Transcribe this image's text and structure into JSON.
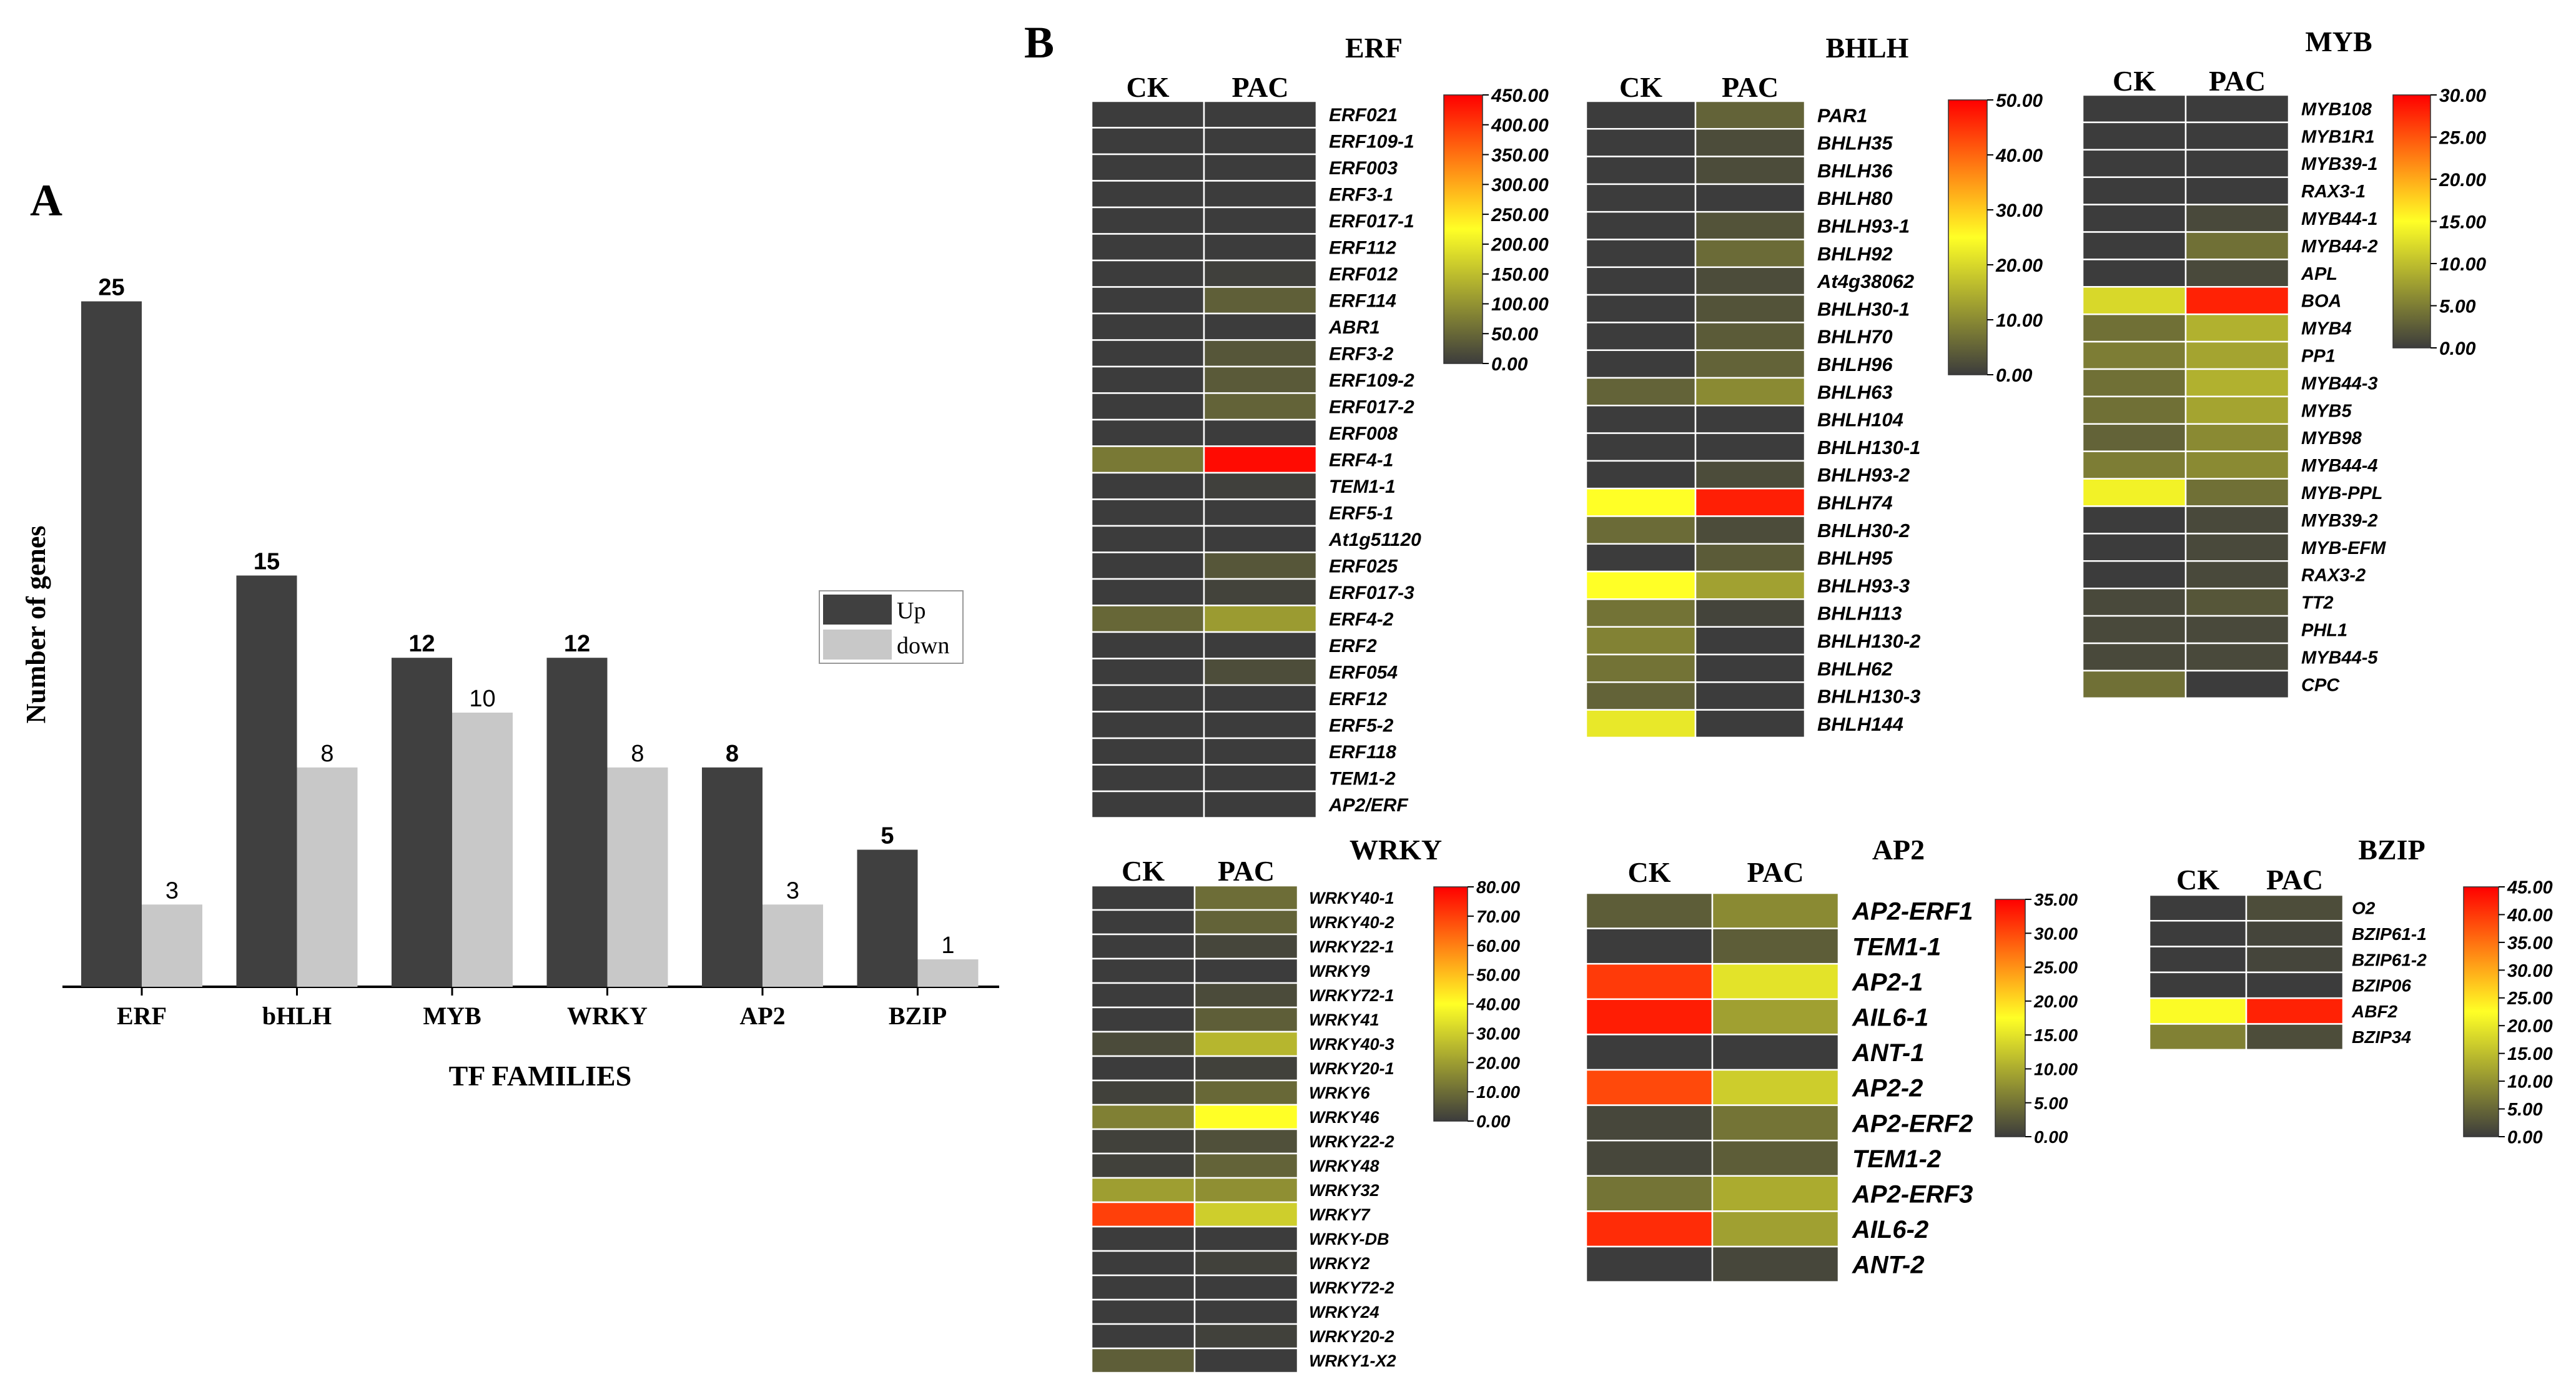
{
  "panel_a": {
    "letter": "A",
    "chart_data": {
      "type": "bar",
      "title": "",
      "xlabel": "TF FAMILIES",
      "ylabel": "Number of genes",
      "categories": [
        "ERF",
        "bHLH",
        "MYB",
        "WRKY",
        "AP2",
        "BZIP"
      ],
      "series": [
        {
          "name": "Up",
          "values": [
            25,
            15,
            12,
            12,
            8,
            5
          ],
          "color": "#404040"
        },
        {
          "name": "down",
          "values": [
            3,
            8,
            10,
            8,
            3,
            1
          ],
          "color": "#c8c8c8"
        }
      ],
      "ylim": [
        0,
        27
      ],
      "legend": "center-right"
    }
  },
  "panel_b": {
    "letter": "B",
    "colorscale": [
      "#3c3c3c",
      "#ffff26",
      "#ff0000"
    ],
    "col_labels": [
      "CK",
      "PAC"
    ],
    "heatmaps": [
      {
        "title": "ERF",
        "ticks": [
          "450.00",
          "400.00",
          "350.00",
          "300.00",
          "250.00",
          "200.00",
          "150.00",
          "100.00",
          "50.00",
          "0.00"
        ],
        "max": 450,
        "genes": [
          "ERF021",
          "ERF109-1",
          "ERF003",
          "ERF3-1",
          "ERF017-1",
          "ERF112",
          "ERF012",
          "ERF114",
          "ABR1",
          "ERF3-2",
          "ERF109-2",
          "ERF017-2",
          "ERF008",
          "ERF4-1",
          "TEM1-1",
          "ERF5-1",
          "At1g51120",
          "ERF025",
          "ERF017-3",
          "ERF4-2",
          "ERF2",
          "ERF054",
          "ERF12",
          "ERF5-2",
          "ERF118",
          "TEM1-2",
          "AP2/ERF"
        ],
        "values": [
          [
            0,
            0
          ],
          [
            0,
            0
          ],
          [
            0,
            0
          ],
          [
            0,
            0
          ],
          [
            0,
            0
          ],
          [
            0,
            0
          ],
          [
            0,
            5
          ],
          [
            0,
            40
          ],
          [
            0,
            0
          ],
          [
            0,
            30
          ],
          [
            0,
            35
          ],
          [
            0,
            45
          ],
          [
            0,
            0
          ],
          [
            70,
            440
          ],
          [
            0,
            5
          ],
          [
            0,
            0
          ],
          [
            0,
            0
          ],
          [
            0,
            30
          ],
          [
            0,
            8
          ],
          [
            50,
            110
          ],
          [
            0,
            0
          ],
          [
            0,
            20
          ],
          [
            0,
            0
          ],
          [
            0,
            0
          ],
          [
            0,
            0
          ],
          [
            0,
            0
          ],
          [
            0,
            0
          ]
        ]
      },
      {
        "title": "BHLH",
        "ticks": [
          "50.00",
          "40.00",
          "30.00",
          "20.00",
          "10.00",
          "0.00"
        ],
        "max": 50,
        "genes": [
          "PAR1",
          "BHLH35",
          "BHLH36",
          "BHLH80",
          "BHLH93-1",
          "BHLH92",
          "At4g38062",
          "BHLH30-1",
          "BHLH70",
          "BHLH96",
          "BHLH63",
          "BHLH104",
          "BHLH130-1",
          "BHLH93-2",
          "BHLH74",
          "BHLH30-2",
          "BHLH95",
          "BHLH93-3",
          "BHLH113",
          "BHLH130-2",
          "BHLH62",
          "BHLH130-3",
          "BHLH144"
        ],
        "values": [
          [
            0,
            5
          ],
          [
            0,
            2
          ],
          [
            0,
            2
          ],
          [
            0,
            0
          ],
          [
            0,
            3
          ],
          [
            0,
            6
          ],
          [
            0,
            2
          ],
          [
            0,
            3
          ],
          [
            0,
            4
          ],
          [
            0,
            5
          ],
          [
            5,
            10
          ],
          [
            0,
            0
          ],
          [
            0,
            0
          ],
          [
            0,
            2
          ],
          [
            25,
            47
          ],
          [
            6,
            2
          ],
          [
            0,
            4
          ],
          [
            25,
            13
          ],
          [
            7,
            1
          ],
          [
            9,
            0
          ],
          [
            7,
            0
          ],
          [
            5,
            0
          ],
          [
            22,
            0
          ]
        ]
      },
      {
        "title": "MYB",
        "ticks": [
          "30.00",
          "25.00",
          "20.00",
          "15.00",
          "10.00",
          "5.00",
          "0.00"
        ],
        "max": 30,
        "genes": [
          "MYB108",
          "MYB1R1",
          "MYB39-1",
          "RAX3-1",
          "MYB44-1",
          "MYB44-2",
          "APL",
          "BOA",
          "MYB4",
          "PP1",
          "MYB44-3",
          "MYB5",
          "MYB98",
          "MYB44-4",
          "MYB-PPL",
          "MYB39-2",
          "MYB-EFM",
          "RAX3-2",
          "TT2",
          "PHL1",
          "MYB44-5",
          "CPC"
        ],
        "values": [
          [
            0,
            0
          ],
          [
            0,
            0
          ],
          [
            0,
            0
          ],
          [
            0,
            0
          ],
          [
            0,
            1
          ],
          [
            0,
            4
          ],
          [
            0,
            1
          ],
          [
            12,
            28
          ],
          [
            4,
            9
          ],
          [
            5,
            8
          ],
          [
            4,
            9
          ],
          [
            4,
            8
          ],
          [
            3,
            6
          ],
          [
            5,
            6
          ],
          [
            14,
            4
          ],
          [
            0,
            1
          ],
          [
            0,
            1
          ],
          [
            0,
            1
          ],
          [
            1,
            2
          ],
          [
            1,
            1
          ],
          [
            1,
            1
          ],
          [
            4,
            0
          ]
        ]
      },
      {
        "title": "WRKY",
        "ticks": [
          "80.00",
          "70.00",
          "60.00",
          "50.00",
          "40.00",
          "30.00",
          "20.00",
          "10.00",
          "0.00"
        ],
        "max": 80,
        "genes": [
          "WRKY40-1",
          "WRKY40-2",
          "WRKY22-1",
          "WRKY9",
          "WRKY72-1",
          "WRKY41",
          "WRKY40-3",
          "WRKY20-1",
          "WRKY6",
          "WRKY46",
          "WRKY22-2",
          "WRKY48",
          "WRKY32",
          "WRKY7",
          "WRKY-DB",
          "WRKY2",
          "WRKY72-2",
          "WRKY24",
          "WRKY20-2",
          "WRKY1-X2"
        ],
        "values": [
          [
            0,
            10
          ],
          [
            0,
            8
          ],
          [
            0,
            2
          ],
          [
            0,
            0
          ],
          [
            0,
            3
          ],
          [
            0,
            7
          ],
          [
            3,
            25
          ],
          [
            0,
            1
          ],
          [
            1,
            9
          ],
          [
            14,
            40
          ],
          [
            1,
            4
          ],
          [
            1,
            8
          ],
          [
            20,
            17
          ],
          [
            70,
            30
          ],
          [
            0,
            0
          ],
          [
            0,
            1
          ],
          [
            0,
            0
          ],
          [
            0,
            0
          ],
          [
            0,
            1
          ],
          [
            7,
            0
          ]
        ]
      },
      {
        "title": "AP2",
        "ticks": [
          "35.00",
          "30.00",
          "25.00",
          "20.00",
          "15.00",
          "10.00",
          "5.00",
          "0.00"
        ],
        "max": 35,
        "genes": [
          "AP2-ERF1",
          "TEM1-1",
          "AP2-1",
          "AIL6-1",
          "ANT-1",
          "AP2-2",
          "AP2-ERF2",
          "TEM1-2",
          "AP2-ERF3",
          "AIL6-2",
          "ANT-2"
        ],
        "values": [
          [
            3,
            7
          ],
          [
            0,
            3
          ],
          [
            31,
            15
          ],
          [
            33,
            9
          ],
          [
            0,
            0
          ],
          [
            30,
            13
          ],
          [
            1,
            5
          ],
          [
            1,
            3
          ],
          [
            5,
            10
          ],
          [
            32,
            9
          ],
          [
            0,
            1
          ]
        ]
      },
      {
        "title": "BZIP",
        "ticks": [
          "45.00",
          "40.00",
          "35.00",
          "30.00",
          "25.00",
          "20.00",
          "15.00",
          "10.00",
          "5.00",
          "0.00"
        ],
        "max": 45,
        "genes": [
          "O2",
          "BZIP61-1",
          "BZIP61-2",
          "BZIP06",
          "ABF2",
          "BZIP34"
        ],
        "values": [
          [
            0,
            2
          ],
          [
            0,
            1
          ],
          [
            0,
            1
          ],
          [
            0,
            0
          ],
          [
            22,
            42
          ],
          [
            8,
            2
          ]
        ]
      }
    ]
  }
}
